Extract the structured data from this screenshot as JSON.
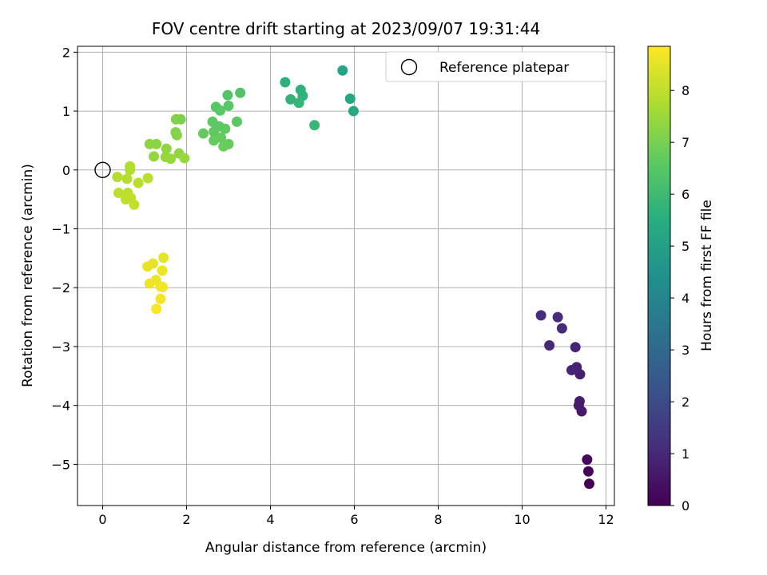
{
  "chart_data": {
    "type": "scatter",
    "title": "FOV centre drift starting at 2023/09/07 19:31:44",
    "xlabel": "Angular distance from reference (arcmin)",
    "ylabel": "Rotation from reference (arcmin)",
    "xlim": [
      -0.6,
      12.2
    ],
    "ylim": [
      -5.7,
      2.1
    ],
    "xticks": [
      0,
      2,
      4,
      6,
      8,
      10,
      12
    ],
    "yticks": [
      -5,
      -4,
      -3,
      -2,
      -1,
      0,
      1,
      2
    ],
    "xtick_labels": [
      "0",
      "2",
      "4",
      "6",
      "8",
      "10",
      "12"
    ],
    "ytick_labels": [
      "−5",
      "−4",
      "−3",
      "−2",
      "−1",
      "0",
      "1",
      "2"
    ],
    "grid": true,
    "colormap": "viridis",
    "colorbar": {
      "label": "Hours from first FF file",
      "range": [
        0,
        8.85
      ],
      "ticks": [
        0,
        1,
        2,
        3,
        4,
        5,
        6,
        7,
        8
      ],
      "tick_labels": [
        "0",
        "1",
        "2",
        "3",
        "4",
        "5",
        "6",
        "7",
        "8"
      ]
    },
    "reference": {
      "name": "Reference platepar",
      "x": 0,
      "y": 0
    },
    "legend": {
      "placement": "top-right",
      "entries": [
        "Reference platepar"
      ]
    },
    "points": [
      {
        "x": 11.6,
        "y": -5.33,
        "c": 0.0
      },
      {
        "x": 11.58,
        "y": -5.12,
        "c": 0.1
      },
      {
        "x": 11.55,
        "y": -4.92,
        "c": 0.2
      },
      {
        "x": 11.42,
        "y": -4.1,
        "c": 0.6
      },
      {
        "x": 11.35,
        "y": -4.0,
        "c": 0.65
      },
      {
        "x": 11.37,
        "y": -3.93,
        "c": 0.7
      },
      {
        "x": 11.38,
        "y": -3.47,
        "c": 0.8
      },
      {
        "x": 11.3,
        "y": -3.35,
        "c": 0.85
      },
      {
        "x": 11.18,
        "y": -3.4,
        "c": 0.9
      },
      {
        "x": 11.27,
        "y": -3.01,
        "c": 0.95
      },
      {
        "x": 10.65,
        "y": -2.98,
        "c": 1.0
      },
      {
        "x": 10.95,
        "y": -2.69,
        "c": 1.05
      },
      {
        "x": 10.85,
        "y": -2.5,
        "c": 1.1
      },
      {
        "x": 10.45,
        "y": -2.47,
        "c": 1.15
      },
      {
        "x": 5.72,
        "y": 1.69,
        "c": 5.2
      },
      {
        "x": 5.9,
        "y": 1.21,
        "c": 5.25
      },
      {
        "x": 5.98,
        "y": 1.0,
        "c": 5.3
      },
      {
        "x": 4.35,
        "y": 1.49,
        "c": 5.6
      },
      {
        "x": 4.72,
        "y": 1.36,
        "c": 5.65
      },
      {
        "x": 4.77,
        "y": 1.26,
        "c": 5.7
      },
      {
        "x": 4.48,
        "y": 1.2,
        "c": 5.75
      },
      {
        "x": 4.68,
        "y": 1.14,
        "c": 5.8
      },
      {
        "x": 5.05,
        "y": 0.76,
        "c": 5.85
      },
      {
        "x": 3.28,
        "y": 1.31,
        "c": 6.4
      },
      {
        "x": 2.98,
        "y": 1.27,
        "c": 6.45
      },
      {
        "x": 3.0,
        "y": 1.09,
        "c": 6.5
      },
      {
        "x": 2.7,
        "y": 1.07,
        "c": 6.5
      },
      {
        "x": 2.8,
        "y": 1.01,
        "c": 6.55
      },
      {
        "x": 3.2,
        "y": 0.82,
        "c": 6.55
      },
      {
        "x": 2.62,
        "y": 0.82,
        "c": 6.6
      },
      {
        "x": 2.78,
        "y": 0.74,
        "c": 6.6
      },
      {
        "x": 2.92,
        "y": 0.7,
        "c": 6.65
      },
      {
        "x": 2.65,
        "y": 0.65,
        "c": 6.65
      },
      {
        "x": 2.4,
        "y": 0.62,
        "c": 6.7
      },
      {
        "x": 2.82,
        "y": 0.55,
        "c": 6.7
      },
      {
        "x": 2.65,
        "y": 0.5,
        "c": 6.75
      },
      {
        "x": 3.0,
        "y": 0.44,
        "c": 6.75
      },
      {
        "x": 2.88,
        "y": 0.4,
        "c": 6.8
      },
      {
        "x": 1.75,
        "y": 0.86,
        "c": 7.1
      },
      {
        "x": 1.86,
        "y": 0.86,
        "c": 7.1
      },
      {
        "x": 1.74,
        "y": 0.64,
        "c": 7.15
      },
      {
        "x": 1.77,
        "y": 0.59,
        "c": 7.2
      },
      {
        "x": 1.12,
        "y": 0.44,
        "c": 7.3
      },
      {
        "x": 1.28,
        "y": 0.44,
        "c": 7.3
      },
      {
        "x": 1.52,
        "y": 0.36,
        "c": 7.35
      },
      {
        "x": 1.82,
        "y": 0.28,
        "c": 7.35
      },
      {
        "x": 1.22,
        "y": 0.23,
        "c": 7.4
      },
      {
        "x": 1.5,
        "y": 0.22,
        "c": 7.4
      },
      {
        "x": 1.62,
        "y": 0.19,
        "c": 7.45
      },
      {
        "x": 1.95,
        "y": 0.2,
        "c": 7.45
      },
      {
        "x": 0.65,
        "y": 0.06,
        "c": 7.8
      },
      {
        "x": 0.65,
        "y": 0.0,
        "c": 7.8
      },
      {
        "x": 0.35,
        "y": -0.12,
        "c": 7.85
      },
      {
        "x": 0.58,
        "y": -0.15,
        "c": 7.85
      },
      {
        "x": 1.08,
        "y": -0.14,
        "c": 7.9
      },
      {
        "x": 0.85,
        "y": -0.22,
        "c": 7.9
      },
      {
        "x": 0.38,
        "y": -0.39,
        "c": 7.95
      },
      {
        "x": 0.6,
        "y": -0.39,
        "c": 7.95
      },
      {
        "x": 0.55,
        "y": -0.5,
        "c": 8.0
      },
      {
        "x": 0.67,
        "y": -0.47,
        "c": 8.0
      },
      {
        "x": 0.75,
        "y": -0.59,
        "c": 8.05
      },
      {
        "x": 1.45,
        "y": -1.49,
        "c": 8.5
      },
      {
        "x": 1.2,
        "y": -1.59,
        "c": 8.55
      },
      {
        "x": 1.07,
        "y": -1.64,
        "c": 8.55
      },
      {
        "x": 1.42,
        "y": -1.71,
        "c": 8.6
      },
      {
        "x": 1.27,
        "y": -1.87,
        "c": 8.6
      },
      {
        "x": 1.12,
        "y": -1.93,
        "c": 8.65
      },
      {
        "x": 1.38,
        "y": -1.98,
        "c": 8.65
      },
      {
        "x": 1.43,
        "y": -1.99,
        "c": 8.7
      },
      {
        "x": 1.38,
        "y": -2.19,
        "c": 8.7
      },
      {
        "x": 1.28,
        "y": -2.36,
        "c": 8.75
      }
    ]
  }
}
